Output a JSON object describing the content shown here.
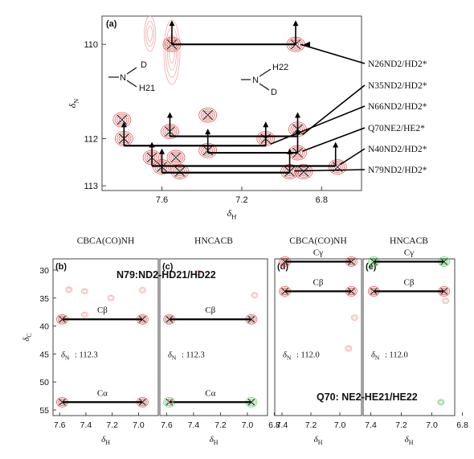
{
  "chart_data": [
    {
      "type": "scatter",
      "panel": "(a)",
      "xlabel": "δH",
      "ylabel": "δN",
      "xlim": [
        7.9,
        6.6
      ],
      "ylim": [
        109.4,
        113.1
      ],
      "xticks": [
        7.6,
        7.2,
        6.8
      ],
      "yticks": [
        110,
        112,
        113
      ],
      "peaks": [
        {
          "x": 7.55,
          "y": 110.0
        },
        {
          "x": 6.93,
          "y": 110.0
        },
        {
          "x": 7.8,
          "y": 111.6
        },
        {
          "x": 7.79,
          "y": 112.0
        },
        {
          "x": 7.56,
          "y": 111.85
        },
        {
          "x": 7.37,
          "y": 111.5
        },
        {
          "x": 7.08,
          "y": 112.0
        },
        {
          "x": 6.92,
          "y": 111.8
        },
        {
          "x": 7.65,
          "y": 112.4
        },
        {
          "x": 7.6,
          "y": 112.6
        },
        {
          "x": 7.53,
          "y": 112.4
        },
        {
          "x": 7.37,
          "y": 112.25
        },
        {
          "x": 7.51,
          "y": 112.7
        },
        {
          "x": 6.92,
          "y": 112.3
        },
        {
          "x": 6.96,
          "y": 112.7
        },
        {
          "x": 6.72,
          "y": 112.6
        },
        {
          "x": 6.89,
          "y": 112.7
        }
      ],
      "assignments": [
        {
          "label": "N26ND2/HD2*",
          "y": 110.0,
          "x": [
            7.55,
            6.93
          ]
        },
        {
          "label": "N35ND2/HD2*",
          "y": 111.95,
          "x": [
            7.56,
            6.92
          ]
        },
        {
          "label": "N66ND2/HD2*",
          "y": 112.15,
          "x": [
            7.79,
            7.08
          ]
        },
        {
          "label": "Q70NE2/HE2*",
          "y": 112.3,
          "x": [
            7.37,
            6.92
          ]
        },
        {
          "label": "N40ND2/HD2*",
          "y": 112.58,
          "x": [
            7.65,
            6.73
          ]
        },
        {
          "label": "N79ND2/HD2*",
          "y": 112.72,
          "x": [
            7.6,
            6.96
          ]
        }
      ],
      "schematics": [
        {
          "atoms": [
            "N",
            "D",
            "H21"
          ]
        },
        {
          "atoms": [
            "N",
            "H22",
            "D"
          ]
        }
      ]
    },
    {
      "type": "scatter",
      "panel": "(b)",
      "experiment": "CBCA(CO)NH",
      "xlabel": "δH",
      "ylabel": "δC",
      "xlim": [
        7.65,
        6.85
      ],
      "ylim": [
        28,
        56
      ],
      "xticks": [
        7.6,
        7.4,
        7.2,
        7.0
      ],
      "yticks": [
        30,
        35,
        40,
        45,
        50,
        55
      ],
      "shift_label": "δN: 112.3",
      "pairs": [
        {
          "label": "Cβ",
          "y": 38.8,
          "x": [
            7.58,
            6.97
          ]
        },
        {
          "label": "Cα",
          "y": 53.6,
          "x": [
            7.58,
            6.97
          ]
        }
      ]
    },
    {
      "type": "scatter",
      "panel": "(c)",
      "experiment": "HNCACB",
      "xlabel": "δH",
      "xlim": [
        7.65,
        6.85
      ],
      "xticks": [
        7.6,
        7.4,
        7.2,
        7.0,
        6.8
      ],
      "shift_label": "δN: 112.3",
      "pairs": [
        {
          "label": "Cβ",
          "y": 38.8,
          "x": [
            7.58,
            6.97
          ]
        },
        {
          "label": "Cα",
          "y": 53.6,
          "x": [
            7.58,
            6.97
          ]
        }
      ],
      "annotation": "N79:ND2-HD21/HD22"
    },
    {
      "type": "scatter",
      "panel": "(d)",
      "experiment": "CBCA(CO)NH",
      "xlabel": "δH",
      "xlim": [
        7.45,
        6.85
      ],
      "xticks": [
        7.4,
        7.2,
        7.0
      ],
      "shift_label": "δN: 112.0",
      "pairs": [
        {
          "label": "Cγ",
          "y": 28.5,
          "x": [
            7.38,
            6.92
          ]
        },
        {
          "label": "Cβ",
          "y": 33.8,
          "x": [
            7.38,
            6.92
          ]
        }
      ]
    },
    {
      "type": "scatter",
      "panel": "(e)",
      "experiment": "HNCACB",
      "xlabel": "δH",
      "xlim": [
        7.45,
        6.85
      ],
      "xticks": [
        7.4,
        7.2,
        7.0,
        6.8
      ],
      "shift_label": "δN: 112.0",
      "pairs": [
        {
          "label": "Cγ",
          "y": 28.5,
          "x": [
            7.38,
            6.92
          ]
        },
        {
          "label": "Cβ",
          "y": 33.8,
          "x": [
            7.38,
            6.92
          ]
        }
      ],
      "annotation": "Q70: NE2-HE21/HE22"
    }
  ],
  "colors": {
    "contour": "#d94040",
    "contour_light": "#ef9a9a",
    "negative": "#44cc55",
    "line": "#000000"
  }
}
